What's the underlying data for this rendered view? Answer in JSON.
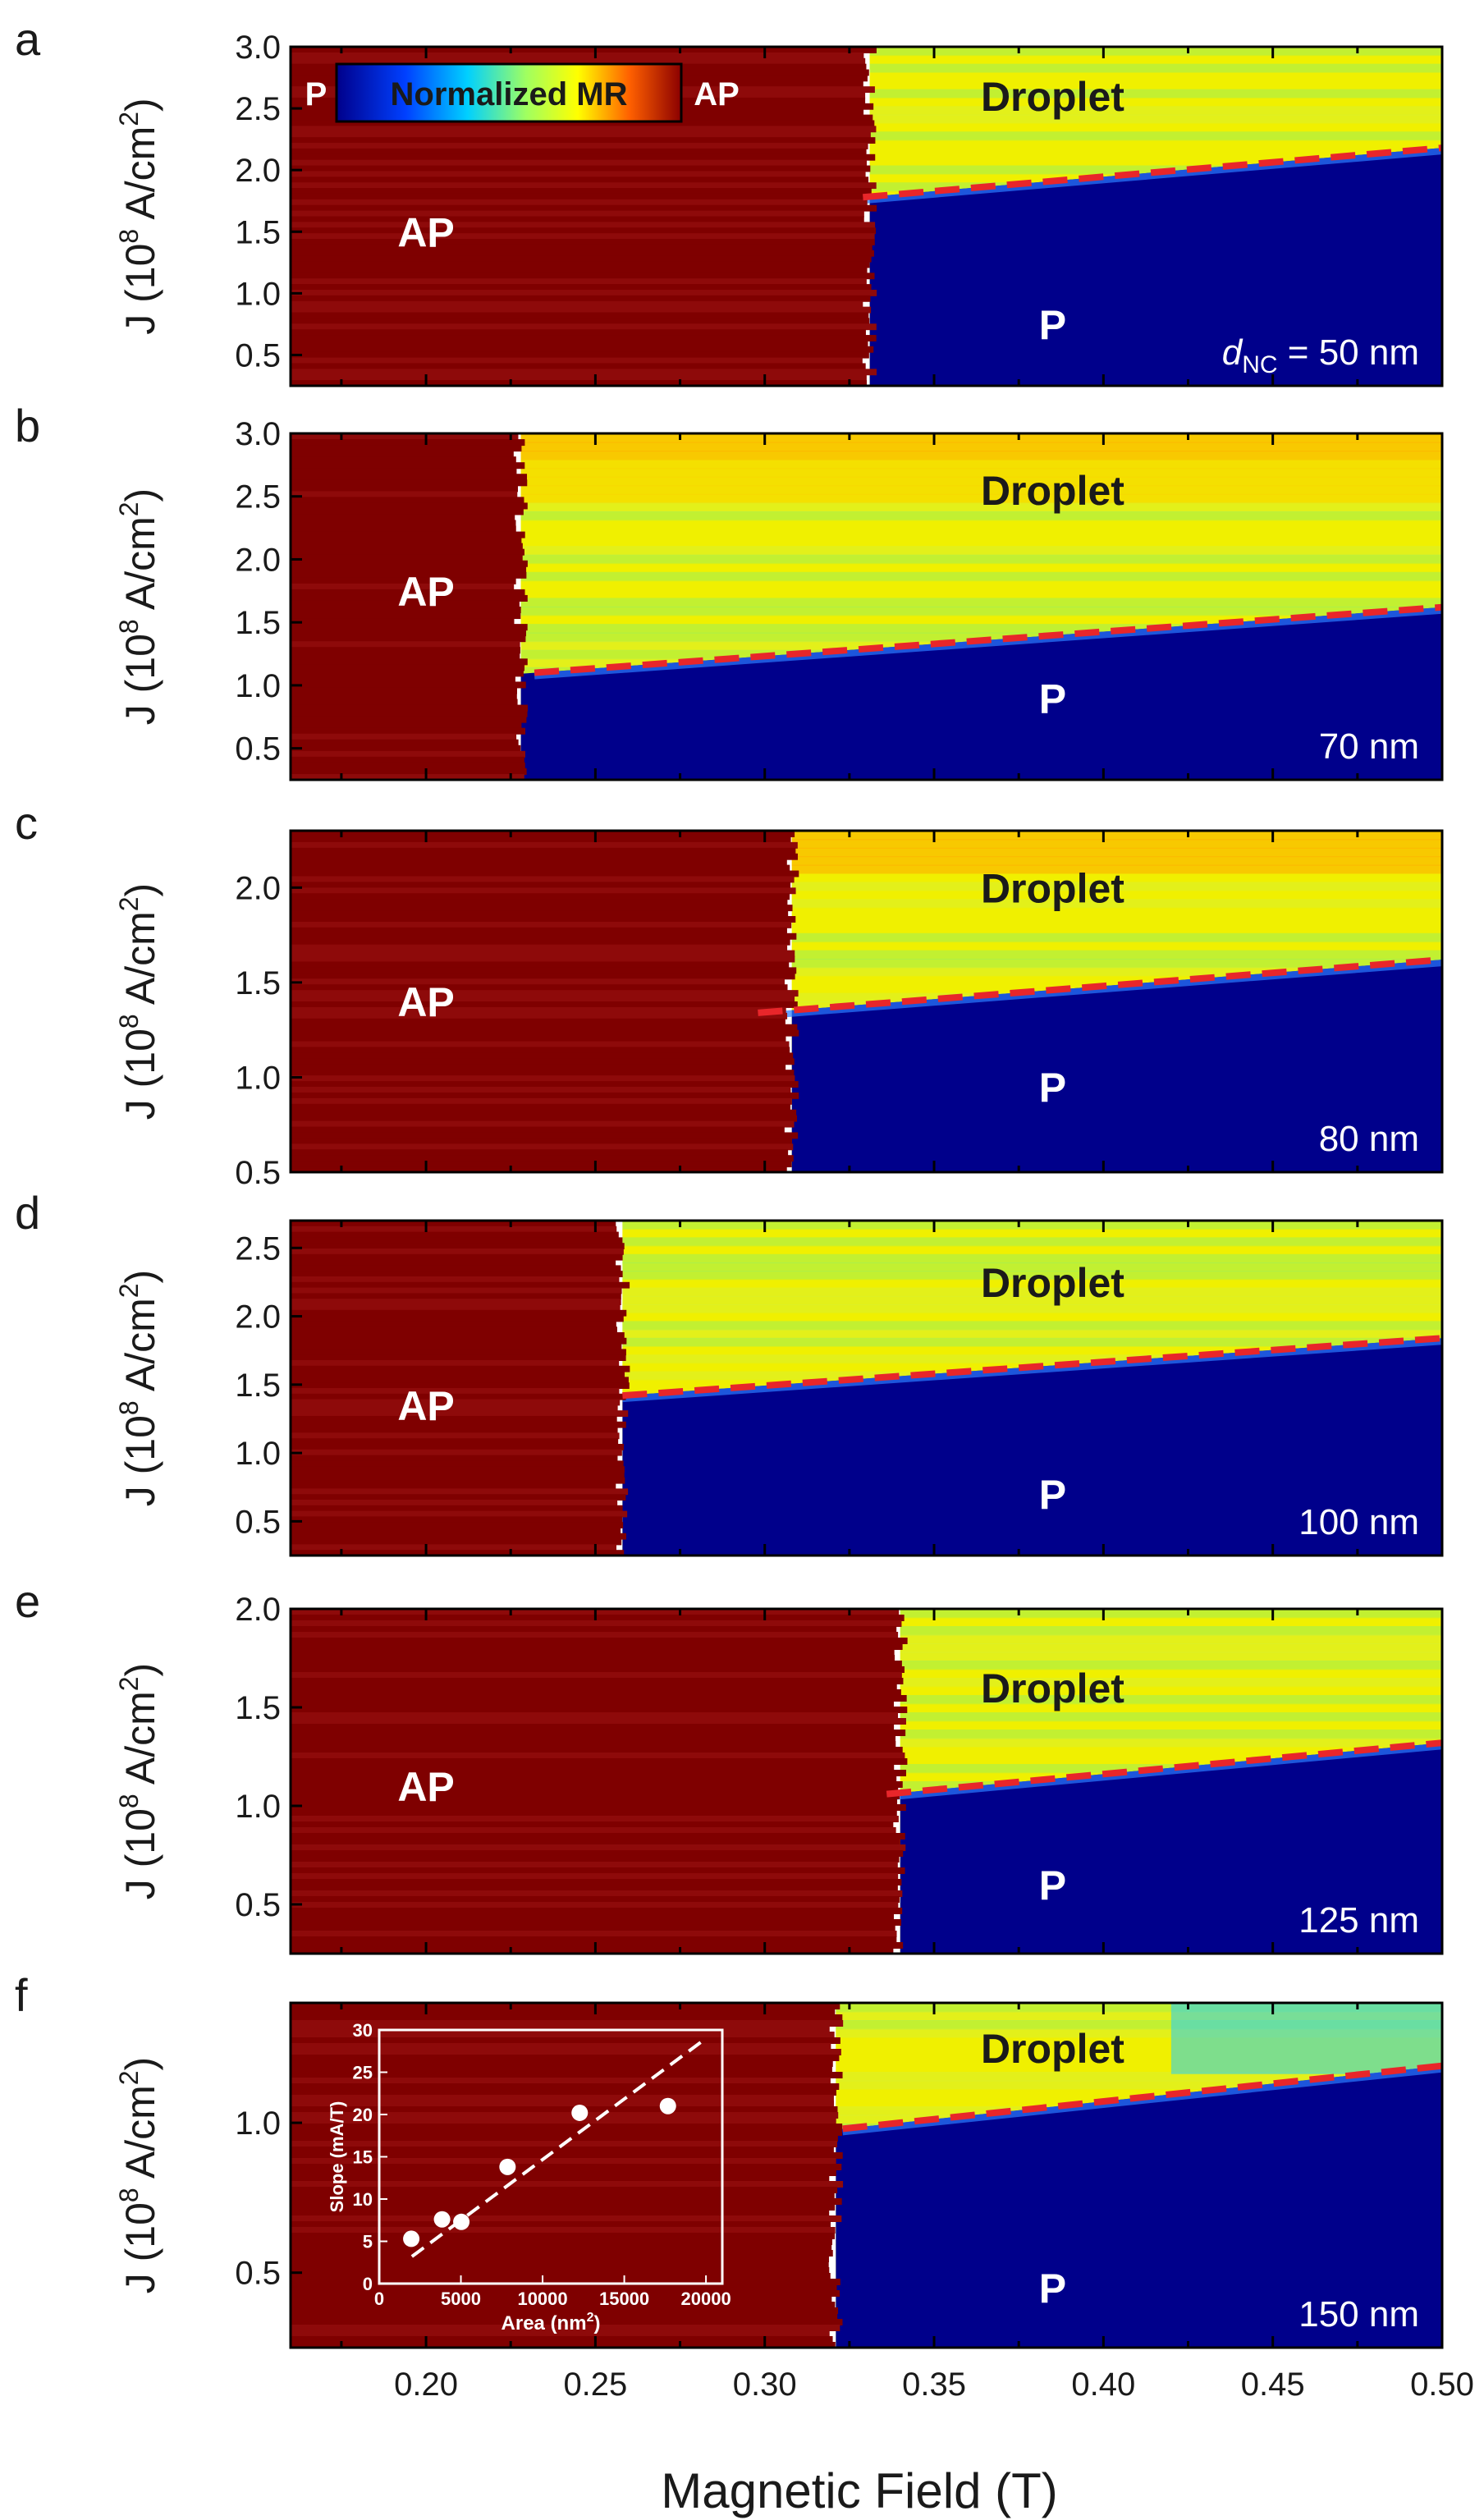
{
  "figure": {
    "xlabel": "Magnetic Field (T)",
    "ylabel_prefix": "J (10",
    "ylabel_exp": "8",
    "ylabel_suffix": " A/cm",
    "ylabel_sq": "2",
    "ylabel_close": ")",
    "xlim": [
      0.16,
      0.5
    ],
    "xticks": [
      0.2,
      0.25,
      0.3,
      0.35,
      0.4,
      0.45,
      0.5
    ],
    "xtick_labels": [
      "0.20",
      "0.25",
      "0.30",
      "0.35",
      "0.40",
      "0.45",
      "0.50"
    ]
  },
  "colorbar": {
    "title": "Normalized MR",
    "left_label": "P",
    "right_label": "AP"
  },
  "colors": {
    "ap": "#7f0000",
    "p": "#00008b",
    "boundary": "#e8262a",
    "droplet_hot": "#ffaa00",
    "droplet_warm": "#f0f000",
    "droplet_cool": "#9cf05a",
    "droplet_cyan": "#20d0ff"
  },
  "chart_data": [
    {
      "type": "heatmap",
      "panel": "a",
      "thickness_label_prefix": "d",
      "thickness_label_sub": "NC",
      "thickness_label_rest": " = 50 nm",
      "ylim": [
        0.25,
        3.0
      ],
      "yticks": [
        0.5,
        1.0,
        1.5,
        2.0,
        2.5,
        3.0
      ],
      "ytick_labels": [
        "0.5",
        "1.0",
        "1.5",
        "2.0",
        "2.5",
        "3.0"
      ],
      "switch_field": 0.331,
      "boundary": {
        "x": [
          0.329,
          0.5
        ],
        "y": [
          1.78,
          2.18
        ]
      },
      "regions": {
        "ap": "AP",
        "p": "P",
        "droplet": "Droplet"
      },
      "region_positions": {
        "ap": [
          0.2,
          1.5
        ],
        "p": [
          0.385,
          0.75
        ],
        "droplet": [
          0.385,
          2.6
        ]
      }
    },
    {
      "type": "heatmap",
      "panel": "b",
      "thickness_label": "70 nm",
      "ylim": [
        0.25,
        3.0
      ],
      "yticks": [
        0.5,
        1.0,
        1.5,
        2.0,
        2.5,
        3.0
      ],
      "ytick_labels": [
        "0.5",
        "1.0",
        "1.5",
        "2.0",
        "2.5",
        "3.0"
      ],
      "switch_field": 0.228,
      "boundary": {
        "x": [
          0.232,
          0.5
        ],
        "y": [
          1.1,
          1.62
        ]
      },
      "regions": {
        "ap": "AP",
        "p": "P",
        "droplet": "Droplet"
      },
      "region_positions": {
        "ap": [
          0.2,
          1.75
        ],
        "p": [
          0.385,
          0.9
        ],
        "droplet": [
          0.385,
          2.55
        ]
      }
    },
    {
      "type": "heatmap",
      "panel": "c",
      "thickness_label": "80 nm",
      "ylim": [
        0.5,
        2.3
      ],
      "yticks": [
        0.5,
        1.0,
        1.5,
        2.0
      ],
      "ytick_labels": [
        "0.5",
        "1.0",
        "1.5",
        "2.0"
      ],
      "switch_field": 0.308,
      "boundary": {
        "x": [
          0.298,
          0.5
        ],
        "y": [
          1.34,
          1.62
        ]
      },
      "regions": {
        "ap": "AP",
        "p": "P",
        "droplet": "Droplet"
      },
      "region_positions": {
        "ap": [
          0.2,
          1.4
        ],
        "p": [
          0.385,
          0.95
        ],
        "droplet": [
          0.385,
          2.0
        ]
      }
    },
    {
      "type": "heatmap",
      "panel": "d",
      "thickness_label": "100 nm",
      "ylim": [
        0.25,
        2.7
      ],
      "yticks": [
        0.5,
        1.0,
        1.5,
        2.0,
        2.5
      ],
      "ytick_labels": [
        "0.5",
        "1.0",
        "1.5",
        "2.0",
        "2.5"
      ],
      "switch_field": 0.258,
      "boundary": {
        "x": [
          0.258,
          0.5
        ],
        "y": [
          1.42,
          1.84
        ]
      },
      "regions": {
        "ap": "AP",
        "p": "P",
        "droplet": "Droplet"
      },
      "region_positions": {
        "ap": [
          0.2,
          1.35
        ],
        "p": [
          0.385,
          0.7
        ],
        "droplet": [
          0.385,
          2.25
        ]
      }
    },
    {
      "type": "heatmap",
      "panel": "e",
      "thickness_label": "125 nm",
      "ylim": [
        0.25,
        2.0
      ],
      "yticks": [
        0.5,
        1.0,
        1.5,
        2.0
      ],
      "ytick_labels": [
        "0.5",
        "1.0",
        "1.5",
        "2.0"
      ],
      "switch_field": 0.34,
      "boundary": {
        "x": [
          0.336,
          0.5
        ],
        "y": [
          1.06,
          1.32
        ]
      },
      "regions": {
        "ap": "AP",
        "p": "P",
        "droplet": "Droplet"
      },
      "region_positions": {
        "ap": [
          0.2,
          1.1
        ],
        "p": [
          0.385,
          0.6
        ],
        "droplet": [
          0.385,
          1.6
        ]
      }
    },
    {
      "type": "heatmap",
      "panel": "f",
      "thickness_label": "150 nm",
      "ylim": [
        0.25,
        1.4
      ],
      "yticks": [
        0.5,
        1.0
      ],
      "ytick_labels": [
        "0.5",
        "1.0"
      ],
      "switch_field": 0.321,
      "boundary": {
        "x": [
          0.323,
          0.5
        ],
        "y": [
          0.98,
          1.19
        ]
      },
      "regions": {
        "p": "P",
        "droplet": "Droplet"
      },
      "region_positions": {
        "p": [
          0.385,
          0.45
        ],
        "droplet": [
          0.385,
          1.25
        ]
      },
      "inset": {
        "type": "scatter",
        "xlabel_prefix": "Area (nm",
        "xlabel_sup": "2",
        "xlabel_close": ")",
        "ylabel": "Slope (mA/T)",
        "xlim": [
          0,
          21000
        ],
        "ylim": [
          0,
          30
        ],
        "xticks": [
          0,
          5000,
          10000,
          15000,
          20000
        ],
        "xtick_labels": [
          "0",
          "5000",
          "10000",
          "15000",
          "20000"
        ],
        "yticks": [
          0,
          5,
          10,
          15,
          20,
          25,
          30
        ],
        "ytick_labels": [
          "0",
          "5",
          "10",
          "15",
          "20",
          "25",
          "30"
        ],
        "x": [
          1963,
          3848,
          5027,
          7854,
          12272,
          17671
        ],
        "y": [
          5.3,
          7.6,
          7.3,
          13.8,
          20.2,
          21.0
        ],
        "fit": {
          "x": [
            2000,
            20000
          ],
          "y": [
            3.2,
            29.0
          ]
        }
      }
    }
  ]
}
